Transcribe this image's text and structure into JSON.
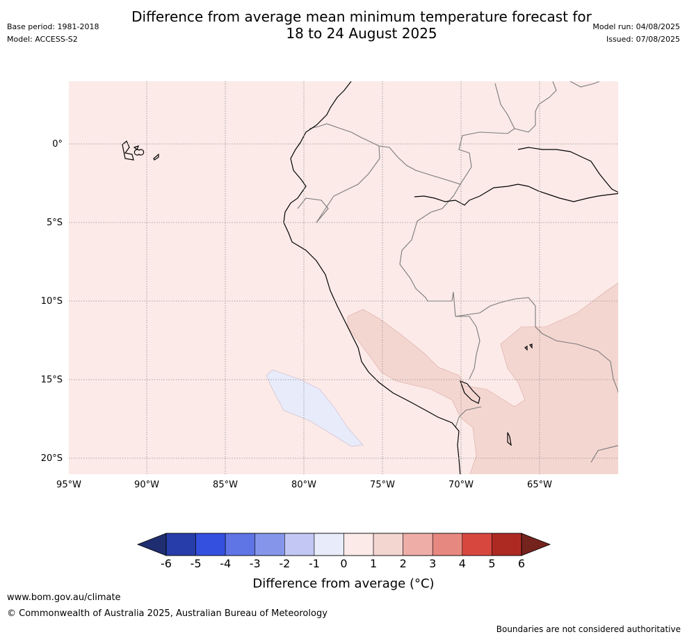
{
  "header": {
    "title_line1": "Difference from average mean minimum temperature forecast for",
    "title_line2": "18 to 24 August 2025",
    "base_period": "Base period: 1981-2018",
    "model": "Model: ACCESS-S2",
    "model_run": "Model run: 04/08/2025",
    "issued": "Issued: 07/08/2025"
  },
  "map": {
    "lon_labels": [
      "95°W",
      "90°W",
      "85°W",
      "80°W",
      "75°W",
      "70°W",
      "65°W"
    ],
    "lat_labels": [
      "0°",
      "5°S",
      "10°S",
      "15°S",
      "20°S"
    ],
    "background_category": "0 to 1",
    "features": [
      "Galapagos Islands",
      "Ecuador",
      "Peru",
      "Colombia",
      "Brazil",
      "Bolivia",
      "Chile",
      "Lake Titicaca"
    ],
    "anomaly_regions": [
      {
        "category": "1 to 2",
        "color": "#f4d6d1",
        "area": "Andes of southern Peru and Bolivia"
      },
      {
        "category": "-1 to 0",
        "color": "#e8ebf9",
        "area": "Pacific Ocean west of southern Peru"
      }
    ]
  },
  "colorbar": {
    "ticks": [
      "-6",
      "-5",
      "-4",
      "-3",
      "-2",
      "-1",
      "0",
      "1",
      "2",
      "3",
      "4",
      "5",
      "6"
    ],
    "colors": [
      "#273da9",
      "#3450df",
      "#5f75e5",
      "#8596ea",
      "#c2c8f3",
      "#e8ebf9",
      "#fbeae8",
      "#f4d6d1",
      "#eeada7",
      "#e78880",
      "#d8473e",
      "#ad2a23"
    ],
    "low_extend_color": "#1e2e70",
    "high_extend_color": "#75231d",
    "label": "Difference from average (°C)"
  },
  "footer": {
    "url": "www.bom.gov.au/climate",
    "copyright": "© Commonwealth of Australia 2025, Australian Bureau of Meteorology",
    "disclaimer": "Boundaries are not considered authoritative"
  }
}
